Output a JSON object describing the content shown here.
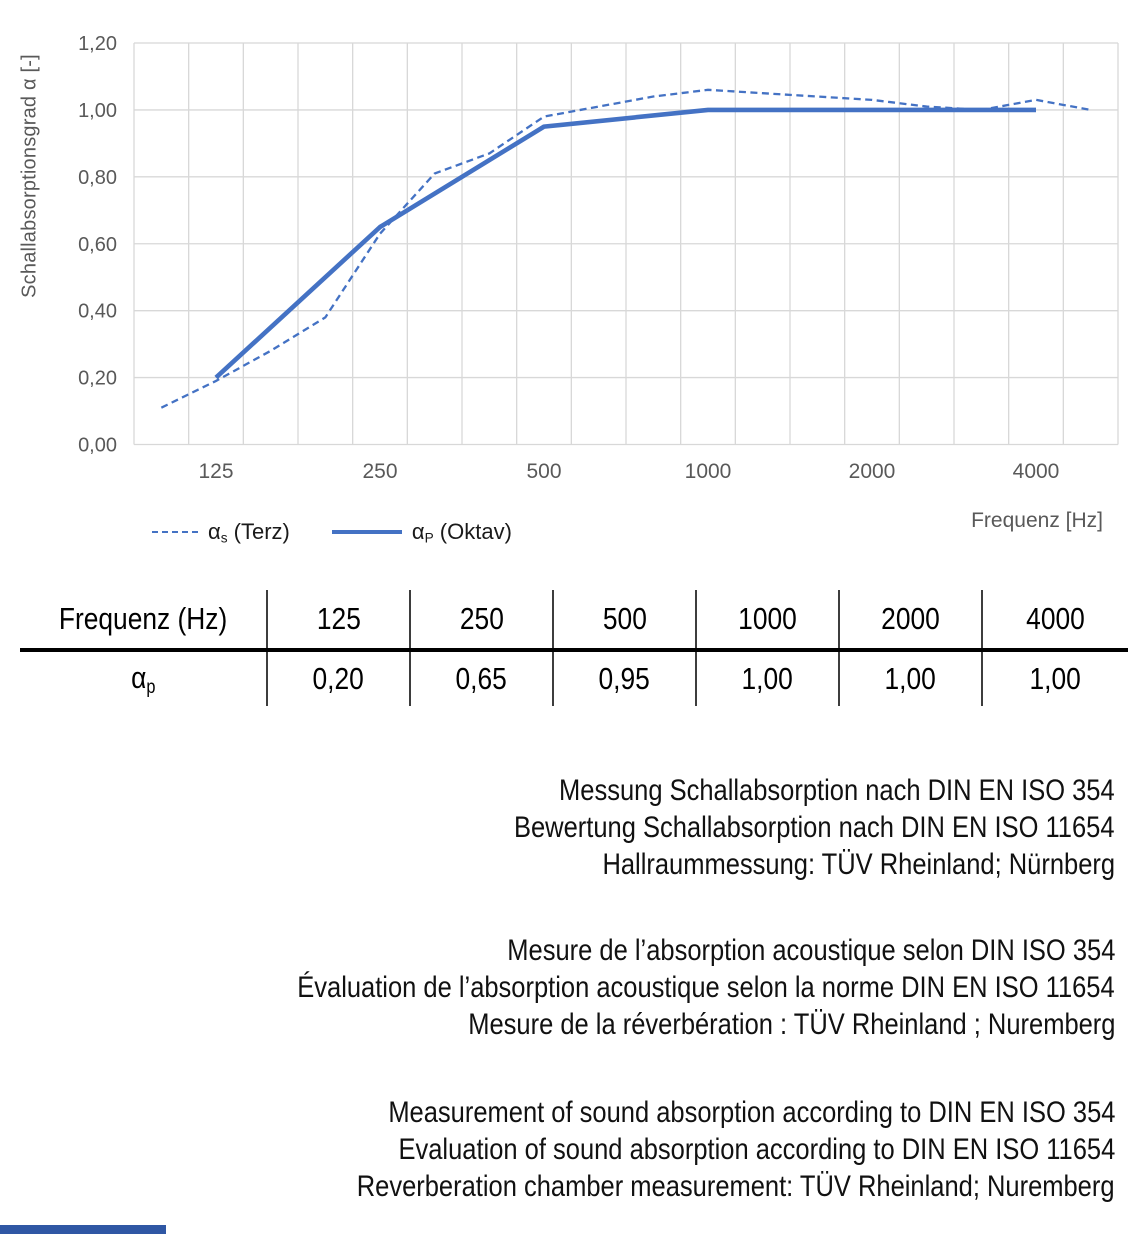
{
  "chart": {
    "y_axis_title": "Schallabsorptionsgrad α [-]",
    "x_axis_title": "Frequenz [Hz]",
    "y_ticks": [
      "1,20",
      "1,00",
      "0,80",
      "0,60",
      "0,40",
      "0,20",
      "0,00"
    ],
    "x_ticks": [
      "125",
      "250",
      "500",
      "1000",
      "2000",
      "4000"
    ],
    "x_tick_indices": [
      1,
      4,
      7,
      10,
      13,
      16
    ],
    "legend": [
      {
        "symbol": "α",
        "sub": "s",
        "rest": " (Terz)",
        "style": "dashed"
      },
      {
        "symbol": "α",
        "sub": "P",
        "rest": " (Oktav)",
        "style": "solid"
      }
    ],
    "line_color": "#4472C4",
    "grid_color": "#D8D8D8",
    "tick_color": "#595959"
  },
  "chart_data": {
    "type": "line",
    "title": "",
    "xlabel": "Frequenz [Hz]",
    "ylabel": "Schallabsorptionsgrad α [-]",
    "x_scale": "third-octave bands (log-spaced categories)",
    "categories": [
      100,
      125,
      160,
      200,
      250,
      315,
      400,
      500,
      630,
      800,
      1000,
      1250,
      1600,
      2000,
      2500,
      3150,
      4000,
      5000
    ],
    "series": [
      {
        "name": "αs (Terz)",
        "style": "dashed",
        "categories": [
          100,
          125,
          160,
          200,
          250,
          315,
          400,
          500,
          630,
          800,
          1000,
          1250,
          1600,
          2000,
          2500,
          3150,
          4000,
          5000
        ],
        "values": [
          0.11,
          0.19,
          0.28,
          0.38,
          0.63,
          0.81,
          0.87,
          0.98,
          1.01,
          1.04,
          1.06,
          1.05,
          1.04,
          1.03,
          1.01,
          1.0,
          1.03,
          1.0
        ]
      },
      {
        "name": "αP (Oktav)",
        "style": "solid",
        "categories": [
          125,
          250,
          500,
          1000,
          2000,
          4000
        ],
        "values": [
          0.2,
          0.65,
          0.95,
          1.0,
          1.0,
          1.0
        ]
      }
    ],
    "ylim": [
      0,
      1.2
    ],
    "ytick_step": 0.2,
    "grid": true,
    "legend_position": "bottom-left"
  },
  "table": {
    "header": [
      "Frequenz (Hz)",
      "125",
      "250",
      "500",
      "1000",
      "2000",
      "4000"
    ],
    "row_label": {
      "symbol": "α",
      "sub": "p"
    },
    "values": [
      "0,20",
      "0,65",
      "0,95",
      "1,00",
      "1,00",
      "1,00"
    ]
  },
  "notes": {
    "de": [
      "Messung Schallabsorption nach DIN EN ISO 354",
      "Bewertung Schallabsorption nach DIN EN ISO 11654",
      "Hallraummessung: TÜV Rheinland; Nürnberg"
    ],
    "fr": [
      "Mesure de l’absorption acoustique selon DIN ISO 354",
      "Évaluation de l’absorption acoustique selon la norme DIN EN ISO 11654",
      "Mesure de la réverbération : TÜV Rheinland ; Nuremberg"
    ],
    "en": [
      "Measurement of sound absorption according to DIN EN ISO 354",
      "Evaluation of sound absorption according to DIN EN ISO 11654",
      "Reverberation chamber measurement: TÜV Rheinland; Nuremberg"
    ]
  },
  "footer_bar_color": "#2F57A4"
}
